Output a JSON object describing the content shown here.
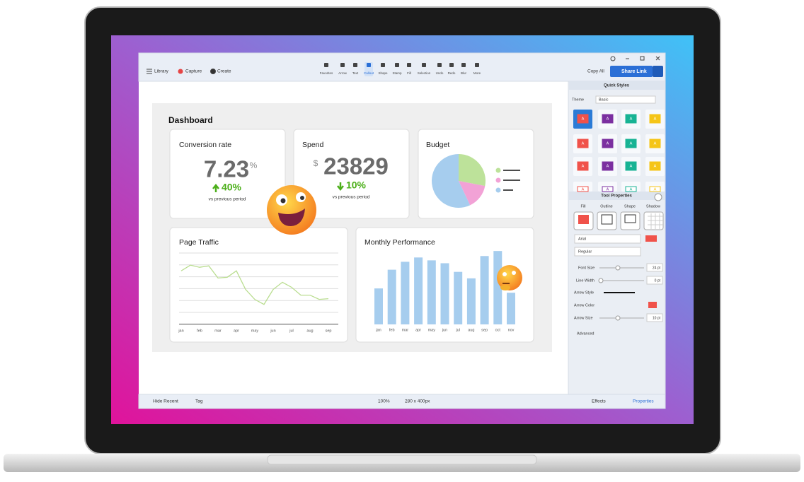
{
  "toolbar": {
    "left": [
      "Library",
      "Capture",
      "Create"
    ],
    "tools": [
      "Favorites",
      "Arrow",
      "Text",
      "Callout",
      "Shape",
      "Stamp",
      "Fill",
      "Selection",
      "Undo",
      "Redo",
      "Blur",
      "More"
    ],
    "copy_all": "Copy All",
    "share_link": "Share Link"
  },
  "dashboard": {
    "title": "Dashboard",
    "conversion": {
      "title": "Conversion rate",
      "value": "7.23",
      "unit": "%",
      "change": "40%",
      "note": "vs previous period"
    },
    "spend": {
      "title": "Spend",
      "currency": "$",
      "value": "23829",
      "change": "10%",
      "note": "vs previous period"
    },
    "budget": {
      "title": "Budget",
      "chart_data": {
        "type": "pie",
        "values": [
          28,
          15,
          57
        ],
        "colors": [
          "#bde29a",
          "#f2a2d6",
          "#a6cdee"
        ]
      }
    },
    "traffic": {
      "title": "Page Traffic",
      "chart_data": {
        "type": "line",
        "color": "#b9dd8f",
        "categories": [
          "jan",
          null,
          "feb",
          null,
          "mar",
          null,
          "apr",
          null,
          "may",
          null,
          "jun",
          null,
          "jul",
          null,
          "aug",
          null,
          "sep"
        ],
        "values": [
          75,
          83,
          80,
          82,
          65,
          66,
          75,
          49,
          35,
          28,
          49,
          59,
          52,
          41,
          41,
          35,
          36
        ],
        "ylim": [
          0,
          100
        ]
      }
    },
    "performance": {
      "title": "Monthly Performance",
      "chart_data": {
        "type": "bar",
        "color": "#a6cdee",
        "categories": [
          "jan",
          "feb",
          "mar",
          "apr",
          "may",
          "jun",
          "jul",
          "aug",
          "sep",
          "oct",
          "nov"
        ],
        "values": [
          50,
          76,
          87,
          93,
          89,
          85,
          73,
          64,
          95,
          102,
          44
        ],
        "ylim": [
          0,
          110
        ]
      }
    }
  },
  "panel": {
    "quick_styles": "Quick Styles",
    "theme_label": "Theme",
    "theme": "Basic",
    "tile_letter": "A",
    "tool_properties": "Tool Properties",
    "columns": [
      "Fill",
      "Outline",
      "Shape",
      "Shadow"
    ],
    "font": "Arial",
    "weight": "Regular",
    "font_size_label": "Font Size",
    "font_size": "24 pt",
    "line_width_label": "Line Width",
    "line_width": "0 pt",
    "arrow_style_label": "Arrow Style",
    "arrow_color_label": "Arrow Color",
    "arrow_size_label": "Arrow Size",
    "arrow_size": "10 pt",
    "advanced": "Advanced"
  },
  "status": {
    "hide_recent": "Hide Recent",
    "tag": "Tag",
    "zoom": "100%",
    "size": "280 x 400px",
    "effects": "Effects",
    "properties": "Properties"
  }
}
